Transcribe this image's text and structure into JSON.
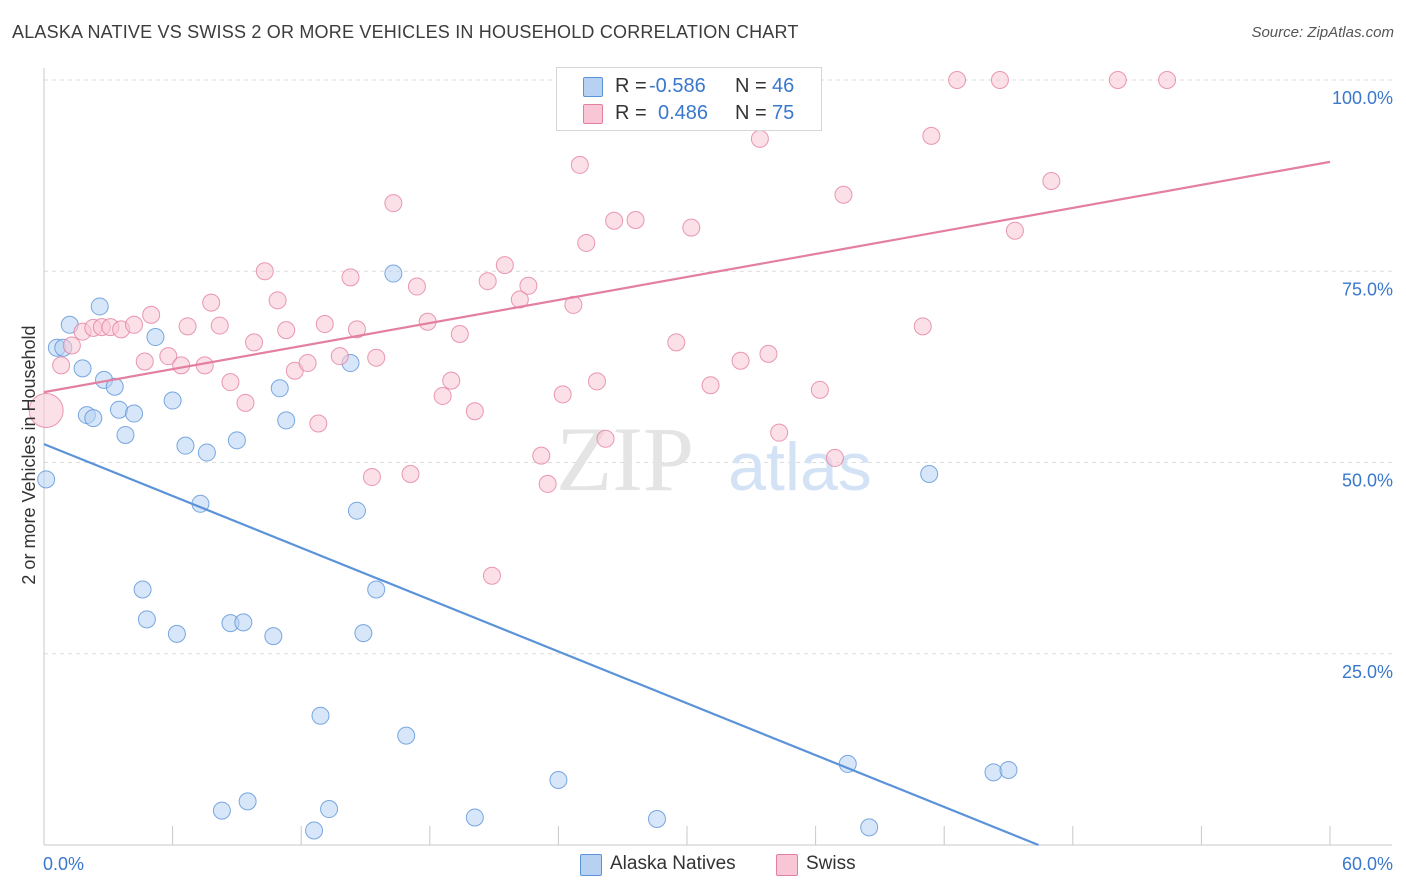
{
  "title": "ALASKA NATIVE VS SWISS 2 OR MORE VEHICLES IN HOUSEHOLD CORRELATION CHART",
  "source": "Source: ZipAtlas.com",
  "watermark": {
    "zip": "ZIP",
    "atlas": "atlas"
  },
  "legend": {
    "rows": [
      {
        "r_label": "R =",
        "r_value": "-0.586",
        "n_label": "N =",
        "n_value": "46",
        "color": "#b7d1f3"
      },
      {
        "r_label": "R =",
        "r_value": "0.486",
        "n_label": "N =",
        "n_value": "75",
        "color": "#f9c6d6"
      }
    ]
  },
  "bottom_legend": [
    {
      "label": "Alaska Natives",
      "color": "#b7d1f3"
    },
    {
      "label": "Swiss",
      "color": "#f9c6d6"
    }
  ],
  "chart_data": {
    "type": "scatter",
    "xlabel": "",
    "ylabel": "2 or more Vehicles in Household",
    "xlim": [
      0,
      60
    ],
    "ylim": [
      0,
      100
    ],
    "x_tick_labels": [
      {
        "value": 0,
        "label": "0.0%"
      },
      {
        "value": 60,
        "label": "60.0%"
      }
    ],
    "y_tick_labels": [
      {
        "value": 25,
        "label": "25.0%"
      },
      {
        "value": 50,
        "label": "50.0%"
      },
      {
        "value": 75,
        "label": "75.0%"
      },
      {
        "value": 100,
        "label": "100.0%"
      }
    ],
    "grid": true,
    "legend_position": "top-center",
    "series": [
      {
        "name": "Alaska Natives",
        "color": "#5b93d9",
        "fill": "#b7d1f3",
        "trend": {
          "x": [
            0,
            46.4
          ],
          "y": [
            52.4,
            0
          ]
        },
        "points": [
          [
            0.1,
            47.8
          ],
          [
            0.6,
            65
          ],
          [
            0.9,
            65
          ],
          [
            1.2,
            68
          ],
          [
            1.8,
            62.3
          ],
          [
            2,
            56.2
          ],
          [
            2.3,
            55.8
          ],
          [
            2.6,
            70.4
          ],
          [
            2.8,
            60.8
          ],
          [
            3.3,
            59.9
          ],
          [
            3.5,
            56.9
          ],
          [
            3.8,
            53.6
          ],
          [
            4.2,
            56.4
          ],
          [
            4.6,
            33.4
          ],
          [
            4.8,
            29.5
          ],
          [
            5.2,
            66.4
          ],
          [
            6,
            58.1
          ],
          [
            6.2,
            27.6
          ],
          [
            6.6,
            52.2
          ],
          [
            7.3,
            44.6
          ],
          [
            7.6,
            51.3
          ],
          [
            8.3,
            4.5
          ],
          [
            8.7,
            29
          ],
          [
            9,
            52.9
          ],
          [
            9.3,
            29.1
          ],
          [
            9.5,
            5.7
          ],
          [
            10.7,
            27.3
          ],
          [
            11,
            59.7
          ],
          [
            11.3,
            55.5
          ],
          [
            12.6,
            1.9
          ],
          [
            12.9,
            16.9
          ],
          [
            13.3,
            4.7
          ],
          [
            14.3,
            63
          ],
          [
            14.6,
            43.7
          ],
          [
            14.9,
            27.7
          ],
          [
            15.5,
            33.4
          ],
          [
            16.3,
            74.7
          ],
          [
            16.9,
            14.3
          ],
          [
            20.1,
            3.6
          ],
          [
            24,
            8.5
          ],
          [
            28.6,
            3.4
          ],
          [
            37.5,
            10.6
          ],
          [
            38.5,
            2.3
          ],
          [
            41.3,
            48.5
          ],
          [
            44.3,
            9.5
          ],
          [
            45,
            9.8
          ]
        ]
      },
      {
        "name": "Swiss",
        "color": "#e37fa1",
        "fill": "#f9c6d6",
        "trend": {
          "x": [
            0,
            60
          ],
          "y": [
            59.2,
            89.3
          ]
        },
        "points": [
          [
            0.1,
            56.8
          ],
          [
            0.8,
            62.7
          ],
          [
            1.3,
            65.3
          ],
          [
            1.8,
            67.1
          ],
          [
            2.3,
            67.6
          ],
          [
            2.7,
            67.7
          ],
          [
            3.1,
            67.7
          ],
          [
            3.6,
            67.4
          ],
          [
            4.2,
            68
          ],
          [
            4.7,
            63.2
          ],
          [
            5,
            69.3
          ],
          [
            5.8,
            63.9
          ],
          [
            6.4,
            62.7
          ],
          [
            6.7,
            67.8
          ],
          [
            7.5,
            62.7
          ],
          [
            7.8,
            70.9
          ],
          [
            8.2,
            67.9
          ],
          [
            8.7,
            60.5
          ],
          [
            9.4,
            57.8
          ],
          [
            9.8,
            65.7
          ],
          [
            10.3,
            75
          ],
          [
            10.9,
            71.2
          ],
          [
            11.3,
            67.3
          ],
          [
            11.7,
            62
          ],
          [
            12.3,
            63
          ],
          [
            12.8,
            55.1
          ],
          [
            13.1,
            68.1
          ],
          [
            13.8,
            63.9
          ],
          [
            14.3,
            74.2
          ],
          [
            14.6,
            67.4
          ],
          [
            15.3,
            48.1
          ],
          [
            15.5,
            63.7
          ],
          [
            16.3,
            83.9
          ],
          [
            17.1,
            48.5
          ],
          [
            17.4,
            73
          ],
          [
            17.9,
            68.4
          ],
          [
            18.6,
            58.7
          ],
          [
            19,
            60.7
          ],
          [
            19.4,
            66.8
          ],
          [
            20.1,
            56.7
          ],
          [
            20.7,
            73.7
          ],
          [
            20.9,
            35.2
          ],
          [
            21.5,
            75.8
          ],
          [
            22.2,
            71.3
          ],
          [
            22.6,
            73.1
          ],
          [
            23.2,
            50.9
          ],
          [
            23.5,
            47.2
          ],
          [
            24.2,
            58.9
          ],
          [
            24.7,
            70.6
          ],
          [
            25,
            88.9
          ],
          [
            25.3,
            78.7
          ],
          [
            25.8,
            60.6
          ],
          [
            26.2,
            53.1
          ],
          [
            26.6,
            81.6
          ],
          [
            27.6,
            81.7
          ],
          [
            29.5,
            65.7
          ],
          [
            30.2,
            80.7
          ],
          [
            31.1,
            60.1
          ],
          [
            31.5,
            100
          ],
          [
            32.5,
            63.3
          ],
          [
            33.4,
            92.3
          ],
          [
            33.8,
            64.2
          ],
          [
            34.3,
            53.9
          ],
          [
            34.8,
            96.5
          ],
          [
            36.2,
            59.5
          ],
          [
            36.9,
            50.6
          ],
          [
            37.3,
            85
          ],
          [
            41,
            67.8
          ],
          [
            41.4,
            92.7
          ],
          [
            42.6,
            100
          ],
          [
            44.6,
            100
          ],
          [
            45.3,
            80.3
          ],
          [
            47,
            86.8
          ],
          [
            50.1,
            100
          ],
          [
            52.4,
            100
          ]
        ]
      }
    ]
  }
}
